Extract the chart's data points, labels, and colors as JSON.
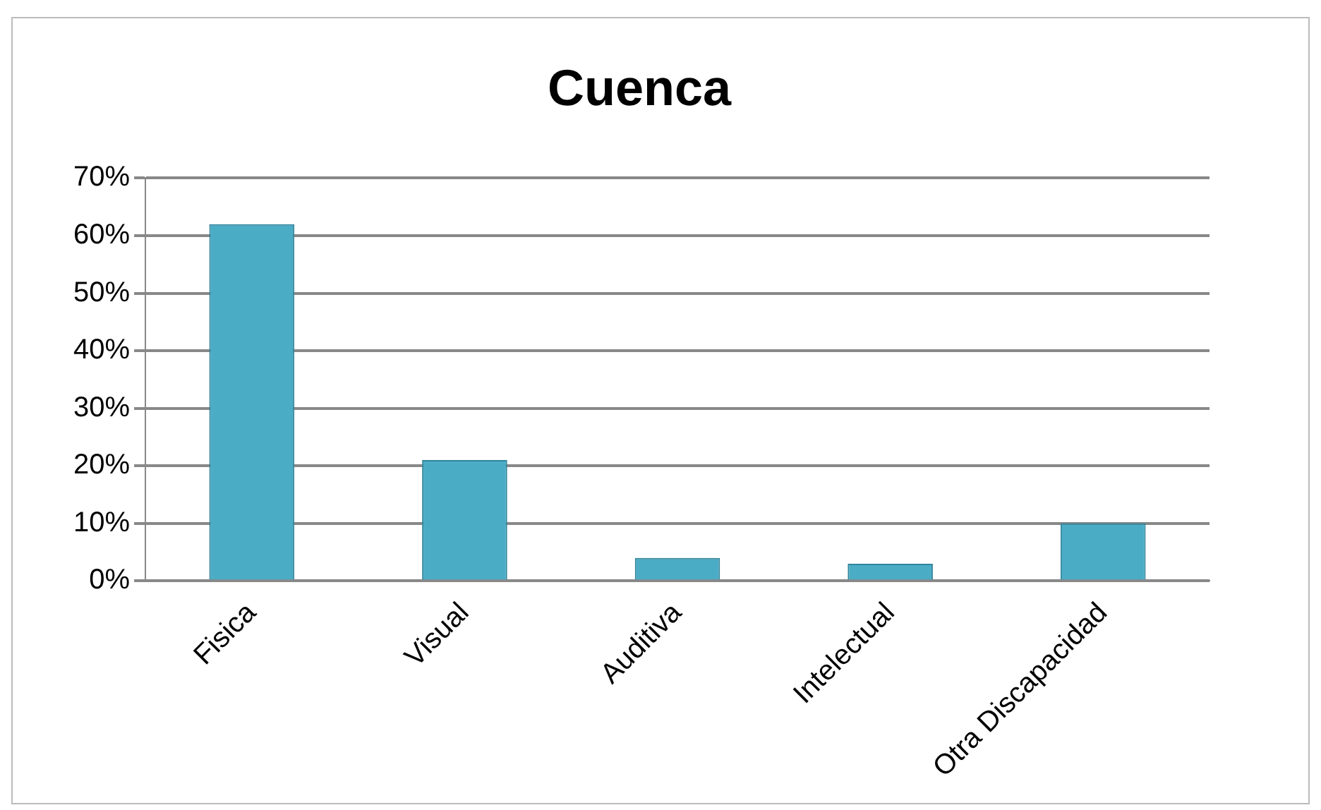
{
  "chart_data": {
    "type": "bar",
    "title": "Cuenca",
    "categories": [
      "Fisica",
      "Visual",
      "Auditiva",
      "Intelectual",
      "Otra Discapacidad"
    ],
    "values": [
      62,
      21,
      4,
      3,
      10
    ],
    "color": "#4bacc6",
    "ylim": [
      0,
      70
    ],
    "yticks": [
      {
        "value": 0,
        "label": "0%"
      },
      {
        "value": 10,
        "label": "10%"
      },
      {
        "value": 20,
        "label": "20%"
      },
      {
        "value": 30,
        "label": "30%"
      },
      {
        "value": 40,
        "label": "40%"
      },
      {
        "value": 50,
        "label": "50%"
      },
      {
        "value": 60,
        "label": "60%"
      },
      {
        "value": 70,
        "label": "70%"
      }
    ],
    "grid": "y",
    "legend": false
  }
}
